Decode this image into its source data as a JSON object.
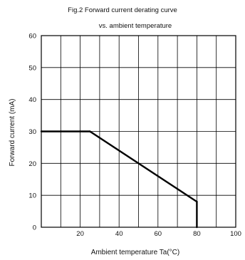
{
  "chart_data": {
    "type": "line",
    "title": "Fig.2  Forward current derating curve",
    "subtitle": "vs. ambient temperature",
    "xlabel": "Ambient temperature Ta(°C)",
    "ylabel": "Forward current (mA)",
    "xlim": [
      0,
      100
    ],
    "ylim": [
      0,
      60
    ],
    "grid": true,
    "x_ticks": [
      20,
      40,
      60,
      80,
      100
    ],
    "x_tick_labels": [
      "20",
      "40",
      "60",
      "80",
      "100"
    ],
    "y_ticks": [
      0,
      10,
      20,
      30,
      40,
      50,
      60
    ],
    "y_tick_labels": [
      "0",
      "10",
      "20",
      "30",
      "40",
      "50",
      "60"
    ],
    "x_gridlines": [
      0,
      10,
      20,
      30,
      40,
      50,
      60,
      70,
      80,
      90,
      100
    ],
    "y_gridlines": [
      0,
      10,
      20,
      30,
      40,
      50,
      60
    ],
    "series": [
      {
        "x": [
          0,
          25,
          80,
          80
        ],
        "y": [
          30,
          30,
          8,
          0
        ]
      }
    ],
    "colors": {
      "line": "#000000",
      "grid": "#000000",
      "frame": "#000000"
    }
  }
}
